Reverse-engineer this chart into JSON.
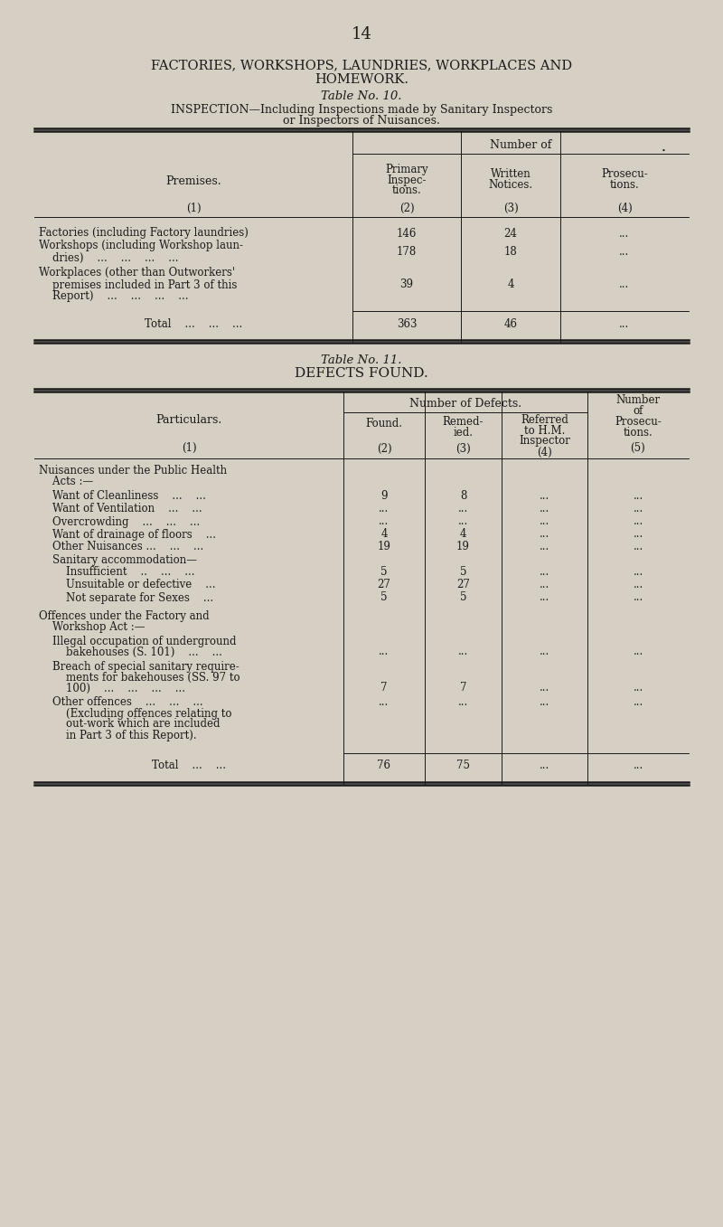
{
  "bg_color": "#d6d0c4",
  "text_color": "#1a1a1a",
  "page_number": "14",
  "main_title_line1": "FACTORIES, WORKSHOPS, LAUNDRIES, WORKPLACES AND",
  "main_title_line2": "HOMEWORK.",
  "table10_title": "Table No. 10.",
  "table10_subtitle_line1": "INSPECTION—Including Inspections made by Sanitary Inspectors",
  "table10_subtitle_line2": "or Inspectors of Nuisances.",
  "table10_total_label": "Total    ...    ...    ...",
  "table10_total_col2": "363",
  "table10_total_col3": "46",
  "table10_total_col4": "...",
  "table11_title": "Table No. 11.",
  "table11_subtitle": "DEFECTS FOUND.",
  "table11_total_label": "Total    ...    ...",
  "table11_total_col2": "76",
  "table11_total_col3": "75",
  "table11_total_col4": "...",
  "table11_total_col5": "...",
  "lw_thick": 1.8,
  "lw_thin": 0.7,
  "c10_x": [
    38,
    390,
    510,
    620,
    762
  ],
  "c11_x": [
    38,
    380,
    470,
    555,
    650,
    762
  ]
}
